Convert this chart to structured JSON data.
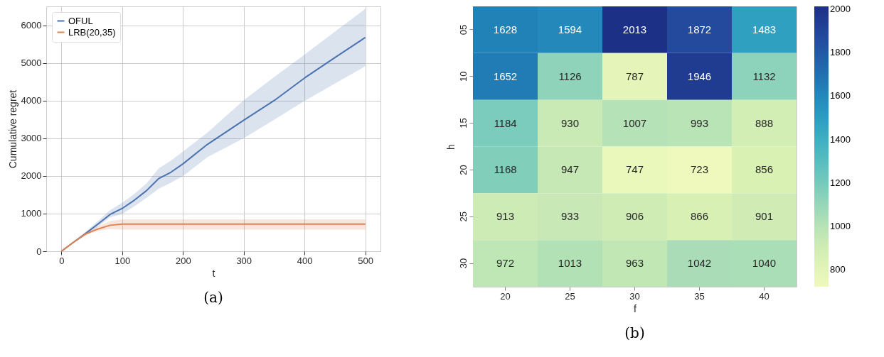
{
  "chart_data": [
    {
      "type": "line",
      "xlabel": "t",
      "ylabel": "Cumulative regret",
      "annotations": [
        "(a)"
      ],
      "legend": "top left",
      "grid": true,
      "line_style": "solid",
      "x": [
        0,
        20,
        40,
        60,
        80,
        100,
        120,
        140,
        160,
        180,
        200,
        240,
        300,
        350,
        400,
        450,
        500
      ],
      "xlim": [
        -25,
        525
      ],
      "xticks": [
        0,
        100,
        200,
        300,
        400,
        500
      ],
      "ylim": [
        0,
        6500
      ],
      "yticks": [
        0,
        1000,
        2000,
        3000,
        4000,
        5000,
        6000
      ],
      "series": [
        {
          "name": "OFUL",
          "color": "#4c72b0",
          "values": [
            0,
            240,
            473,
            720,
            976,
            1136,
            1355,
            1609,
            1929,
            2095,
            2320,
            2834,
            3479,
            4000,
            4598,
            5140,
            5675
          ],
          "lower": [
            0,
            220,
            430,
            650,
            899,
            988,
            1190,
            1420,
            1657,
            1820,
            1994,
            2497,
            3000,
            3490,
            3988,
            4450,
            4911
          ],
          "upper": [
            0,
            260,
            520,
            800,
            1095,
            1284,
            1520,
            1800,
            2201,
            2400,
            2645,
            3148,
            4006,
            4627,
            5219,
            5830,
            6432
          ]
        },
        {
          "name": "LRB(20,35)",
          "color": "#dd8452",
          "values": [
            0,
            240,
            460,
            590,
            690,
            720,
            720,
            720,
            720,
            720,
            720,
            720,
            720,
            720,
            720,
            720,
            720
          ],
          "lower": [
            0,
            225,
            430,
            540,
            590,
            575,
            575,
            575,
            575,
            575,
            575,
            575,
            575,
            575,
            575,
            575,
            575
          ],
          "upper": [
            0,
            250,
            500,
            660,
            800,
            850,
            850,
            850,
            850,
            850,
            850,
            850,
            850,
            850,
            850,
            850,
            850
          ]
        }
      ]
    },
    {
      "type": "heatmap",
      "xlabel": "f",
      "ylabel": "h",
      "annotations": [
        "(b)"
      ],
      "data_labels": true,
      "categories": [
        "20",
        "25",
        "30",
        "35",
        "40"
      ],
      "y_categories": [
        "05",
        "10",
        "15",
        "20",
        "25",
        "30"
      ],
      "cells": [
        [
          1628,
          1594,
          2013,
          1872,
          1483
        ],
        [
          1652,
          1126,
          787,
          1946,
          1132
        ],
        [
          1184,
          930,
          1007,
          993,
          888
        ],
        [
          1168,
          947,
          747,
          723,
          856
        ],
        [
          913,
          933,
          906,
          866,
          901
        ],
        [
          972,
          1013,
          963,
          1042,
          1040
        ]
      ],
      "clim": [
        723,
        2013
      ],
      "cticks": [
        800,
        1000,
        1200,
        1400,
        1600,
        1800,
        2000
      ]
    }
  ]
}
